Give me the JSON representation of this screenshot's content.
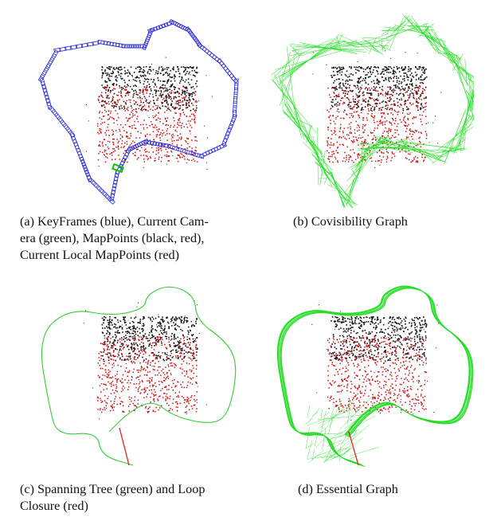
{
  "figure": {
    "panels": [
      {
        "id": "a",
        "caption": "(a) KeyFrames (blue), Current Camera (green), MapPoints (black, red), Current Local MapPoints (red)",
        "caption_lines": [
          "(a) KeyFrames (blue), Current Cam-",
          "era (green), MapPoints (black, red),",
          "Current Local MapPoints (red)"
        ],
        "trajectory_color": "#2b2bd8",
        "camera_color": "#10c010"
      },
      {
        "id": "b",
        "caption": "(b) Covisibility Graph",
        "caption_lines": [
          "(b) Covisibility Graph"
        ],
        "graph_color": "#22dd22"
      },
      {
        "id": "c",
        "caption": "(c) Spanning Tree (green) and Loop Closure (red)",
        "caption_lines": [
          "(c) Spanning Tree (green) and Loop",
          "Closure (red)"
        ],
        "tree_color": "#33cc33",
        "loop_color": "#dd2222"
      },
      {
        "id": "d",
        "caption": "(d) Essential Graph",
        "caption_lines": [
          "(d) Essential Graph"
        ],
        "graph_color": "#22dd22",
        "loop_color": "#dd2222"
      }
    ],
    "colors": {
      "mappoints_black": "#111111",
      "local_mappoints_red": "#cc1111"
    }
  }
}
